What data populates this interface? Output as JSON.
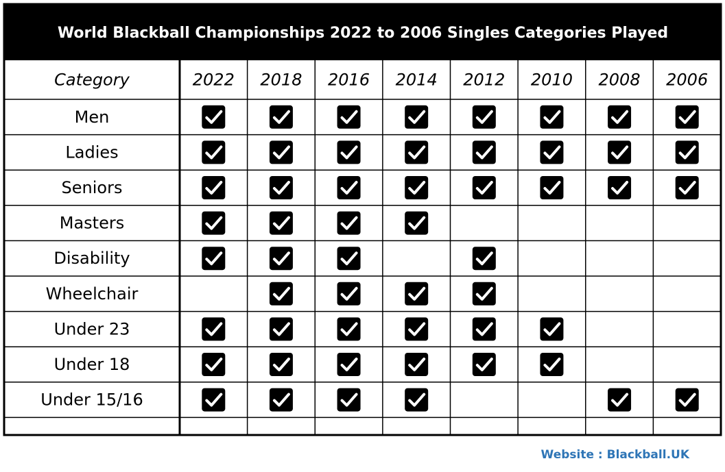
{
  "title": "World Blackball Championships 2022 to 2006 Singles Categories Played",
  "table": {
    "header": [
      "Category",
      "2022",
      "2018",
      "2016",
      "2014",
      "2012",
      "2010",
      "2008",
      "2006"
    ],
    "rows": [
      {
        "label": "Men",
        "played": [
          true,
          true,
          true,
          true,
          true,
          true,
          true,
          true
        ]
      },
      {
        "label": "Ladies",
        "played": [
          true,
          true,
          true,
          true,
          true,
          true,
          true,
          true
        ]
      },
      {
        "label": "Seniors",
        "played": [
          true,
          true,
          true,
          true,
          true,
          true,
          true,
          true
        ]
      },
      {
        "label": "Masters",
        "played": [
          true,
          true,
          true,
          true,
          false,
          false,
          false,
          false
        ]
      },
      {
        "label": "Disability",
        "played": [
          true,
          true,
          true,
          false,
          true,
          false,
          false,
          false
        ]
      },
      {
        "label": "Wheelchair",
        "played": [
          false,
          true,
          true,
          true,
          true,
          false,
          false,
          false
        ]
      },
      {
        "label": "Under 23",
        "played": [
          true,
          true,
          true,
          true,
          true,
          true,
          false,
          false
        ]
      },
      {
        "label": "Under 18",
        "played": [
          true,
          true,
          true,
          true,
          true,
          true,
          false,
          false
        ]
      },
      {
        "label": "Under 15/16",
        "played": [
          true,
          true,
          true,
          true,
          false,
          false,
          true,
          true
        ]
      }
    ]
  },
  "footer": "Website : Blackball.UK"
}
